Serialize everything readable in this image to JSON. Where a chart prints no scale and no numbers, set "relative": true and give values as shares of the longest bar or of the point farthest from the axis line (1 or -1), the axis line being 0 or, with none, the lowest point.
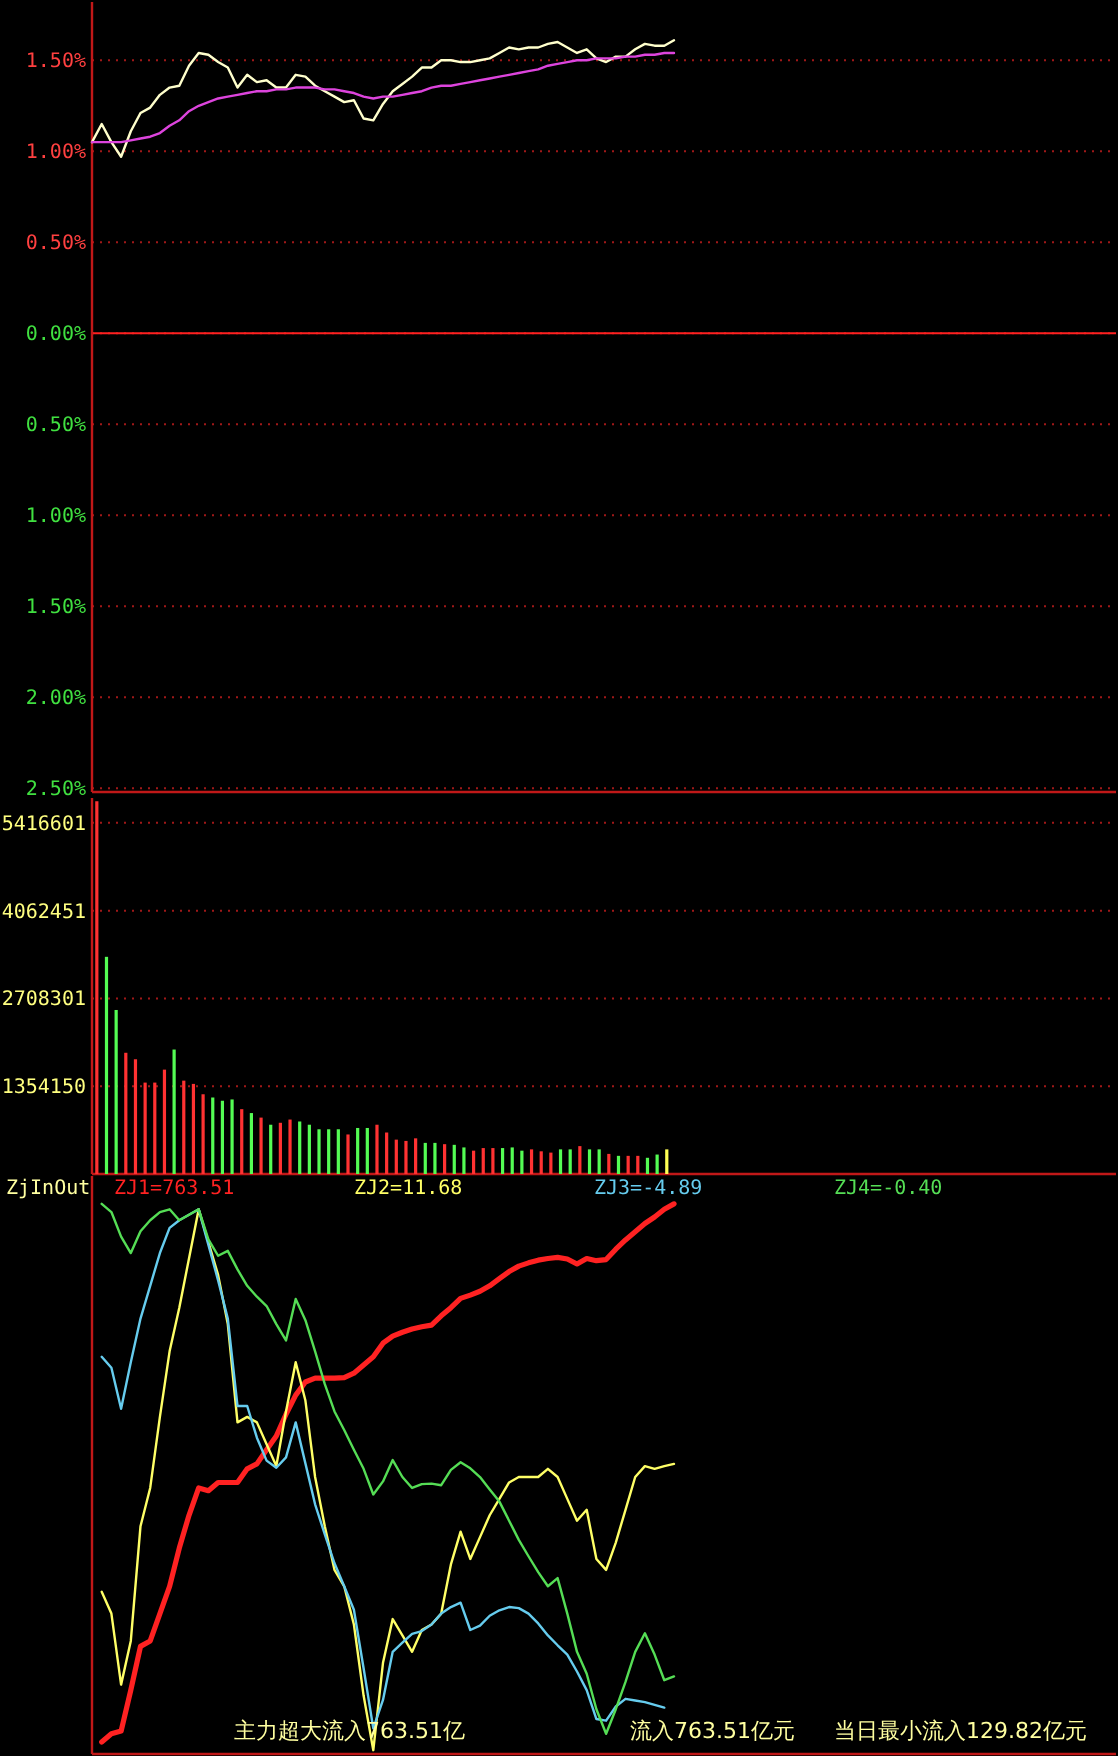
{
  "chart_data": [
    {
      "type": "line",
      "ylim": [
        -2.52,
        1.82
      ],
      "tick_labels": "y",
      "grid": "y",
      "categories": [
        null,
        null,
        null,
        null,
        null,
        null,
        null,
        null,
        null,
        null,
        null,
        null,
        null,
        null,
        null,
        null,
        null,
        null,
        null,
        null,
        null,
        null,
        null,
        null,
        null,
        null,
        null,
        null,
        null,
        null,
        null,
        null,
        null,
        null,
        null,
        null,
        null,
        null,
        null,
        null,
        null,
        null,
        null,
        null,
        null,
        null,
        null,
        null,
        null,
        null,
        null,
        null,
        null,
        null,
        null,
        null,
        null,
        null,
        null,
        null,
        null
      ],
      "yticks": [
        {
          "value": 1.5,
          "label": "1.50%"
        },
        {
          "value": 1.0,
          "label": "1.00%"
        },
        {
          "value": 0.5,
          "label": "0.50%"
        },
        {
          "value": 0,
          "label": "0.00%"
        },
        {
          "value": -0.5,
          "label": "0.50%"
        },
        {
          "value": -1.0,
          "label": "1.00%"
        },
        {
          "value": -1.5,
          "label": "1.50%"
        },
        {
          "value": -2.0,
          "label": "2.00%"
        },
        {
          "value": -2.5,
          "label": "2.50%"
        }
      ],
      "ref_lines": [
        {
          "axis": "y",
          "value": 0,
          "color": "#ff2020",
          "line_style": "solid"
        }
      ],
      "series": [
        {
          "color": "#ffffcc",
          "values": [
            1.05,
            1.15,
            1.05,
            0.97,
            1.11,
            1.21,
            1.24,
            1.31,
            1.35,
            1.36,
            1.47,
            1.54,
            1.53,
            1.49,
            1.46,
            1.35,
            1.42,
            1.38,
            1.39,
            1.35,
            1.35,
            1.42,
            1.41,
            1.36,
            1.33,
            1.3,
            1.27,
            1.28,
            1.18,
            1.17,
            1.26,
            1.33,
            1.37,
            1.41,
            1.46,
            1.46,
            1.5,
            1.5,
            1.49,
            1.49,
            1.5,
            1.51,
            1.54,
            1.57,
            1.56,
            1.57,
            1.57,
            1.59,
            1.6,
            1.57,
            1.54,
            1.56,
            1.51,
            1.49,
            1.52,
            1.52,
            1.56,
            1.59,
            1.58,
            1.58,
            1.61
          ]
        },
        {
          "color": "#dd44dd",
          "values": [
            1.05,
            1.05,
            1.05,
            1.05,
            1.06,
            1.07,
            1.08,
            1.1,
            1.14,
            1.17,
            1.22,
            1.25,
            1.27,
            1.29,
            1.3,
            1.31,
            1.32,
            1.33,
            1.33,
            1.34,
            1.34,
            1.35,
            1.35,
            1.35,
            1.34,
            1.34,
            1.33,
            1.32,
            1.3,
            1.29,
            1.3,
            1.3,
            1.31,
            1.32,
            1.33,
            1.35,
            1.36,
            1.36,
            1.37,
            1.38,
            1.39,
            1.4,
            1.41,
            1.42,
            1.43,
            1.44,
            1.45,
            1.47,
            1.48,
            1.49,
            1.5,
            1.5,
            1.51,
            1.51,
            1.51,
            1.52,
            1.52,
            1.53,
            1.53,
            1.54,
            1.54
          ]
        }
      ]
    },
    {
      "type": "bar",
      "ylim": [
        0,
        5800000
      ],
      "tick_labels": "y",
      "grid": "y",
      "yticks": [
        1354150,
        2708301,
        4062451,
        5416601
      ],
      "categories": [
        null,
        null,
        null,
        null,
        null,
        null,
        null,
        null,
        null,
        null,
        null,
        null,
        null,
        null,
        null,
        null,
        null,
        null,
        null,
        null,
        null,
        null,
        null,
        null,
        null,
        null,
        null,
        null,
        null,
        null,
        null,
        null,
        null,
        null,
        null,
        null,
        null,
        null,
        null,
        null,
        null,
        null,
        null,
        null,
        null,
        null,
        null,
        null,
        null,
        null,
        null,
        null,
        null,
        null,
        null,
        null,
        null,
        null,
        null,
        null,
        null,
        null,
        null,
        null,
        null,
        null,
        null,
        null,
        null,
        null,
        null,
        null,
        null,
        null,
        null,
        null,
        null,
        null,
        null,
        null,
        null,
        null,
        null,
        null,
        null,
        null,
        null,
        null,
        null,
        null,
        null,
        null,
        null,
        null,
        null,
        null,
        null,
        null,
        null,
        null,
        null,
        null,
        null,
        null,
        null,
        null
      ],
      "values": [
        5750000,
        3350000,
        2530000,
        1870000,
        1770000,
        1410000,
        1410000,
        1610000,
        1920000,
        1440000,
        1390000,
        1230000,
        1180000,
        1130000,
        1150000,
        1000000,
        940000,
        870000,
        760000,
        790000,
        840000,
        810000,
        760000,
        690000,
        690000,
        690000,
        610000,
        710000,
        710000,
        760000,
        640000,
        530000,
        510000,
        550000,
        480000,
        480000,
        460000,
        450000,
        410000,
        360000,
        400000,
        400000,
        400000,
        410000,
        360000,
        380000,
        350000,
        330000,
        380000,
        380000,
        430000,
        380000,
        380000,
        310000,
        280000,
        280000,
        280000,
        250000,
        300000,
        380000,
        null,
        null,
        null,
        null,
        null,
        null,
        null,
        null,
        null,
        null,
        null,
        null,
        null,
        null,
        null,
        null,
        null,
        null,
        null,
        null,
        null,
        null,
        null,
        null,
        null,
        null,
        null,
        null,
        null,
        null,
        null,
        null,
        null,
        null,
        null,
        null,
        null,
        null,
        null,
        null,
        null,
        null,
        null,
        null,
        null,
        null
      ],
      "colors": [
        "#ff3232",
        "#54fc54",
        "#54fc54",
        "#ff3232",
        "#ff3232",
        "#ff3232",
        "#ff3232",
        "#ff3232",
        "#54fc54",
        "#ff3232",
        "#ff3232",
        "#ff3232",
        "#54fc54",
        "#54fc54",
        "#54fc54",
        "#ff3232",
        "#54fc54",
        "#ff3232",
        "#54fc54",
        "#ff3232",
        "#ff3232",
        "#54fc54",
        "#54fc54",
        "#54fc54",
        "#54fc54",
        "#54fc54",
        "#ff3232",
        "#54fc54",
        "#54fc54",
        "#ff3232",
        "#ff3232",
        "#ff3232",
        "#ff3232",
        "#ff3232",
        "#54fc54",
        "#54fc54",
        "#ff3232",
        "#54fc54",
        "#54fc54",
        "#ff3232",
        "#ff3232",
        "#ff3232",
        "#54fc54",
        "#54fc54",
        "#54fc54",
        "#ff3232",
        "#ff3232",
        "#ff3232",
        "#54fc54",
        "#54fc54",
        "#ff3232",
        "#54fc54",
        "#54fc54",
        "#ff3232",
        "#54fc54",
        "#ff3232",
        "#ff3232",
        "#54fc54",
        "#54fc54",
        "#ffff54",
        null,
        null,
        null,
        null,
        null,
        null,
        null,
        null,
        null,
        null,
        null,
        null,
        null,
        null,
        null,
        null,
        null,
        null,
        null,
        null,
        null,
        null,
        null,
        null,
        null,
        null,
        null,
        null,
        null,
        null,
        null,
        null,
        null,
        null,
        null,
        null,
        null,
        null,
        null,
        null,
        null,
        null,
        null,
        null,
        null,
        null
      ]
    },
    {
      "type": "line",
      "title": "ZjInOut",
      "relative": true,
      "tick_labels": false,
      "categories": [
        null,
        null,
        null,
        null,
        null,
        null,
        null,
        null,
        null,
        null,
        null,
        null,
        null,
        null,
        null,
        null,
        null,
        null,
        null,
        null,
        null,
        null,
        null,
        null,
        null,
        null,
        null,
        null,
        null,
        null,
        null,
        null,
        null,
        null,
        null,
        null,
        null,
        null,
        null,
        null,
        null,
        null,
        null,
        null,
        null,
        null,
        null,
        null,
        null,
        null,
        null,
        null,
        null,
        null,
        null,
        null,
        null,
        null,
        null,
        null,
        null
      ],
      "annotations": [
        "主力超大流入763.51亿",
        "流入763.51亿元",
        "当日最小流入129.82亿元"
      ],
      "series": [
        {
          "name": "ZJ1=763.51",
          "color": "#ff2222",
          "values": [
            null,
            0.015,
            0.03,
            0.035,
            0.11,
            0.19,
            0.2,
            0.25,
            0.3,
            0.37,
            0.43,
            0.48,
            0.475,
            0.49,
            0.49,
            0.49,
            0.515,
            0.524,
            0.55,
            0.575,
            0.615,
            0.65,
            0.674,
            0.681,
            0.681,
            0.681,
            0.682,
            0.69,
            0.705,
            0.72,
            0.745,
            0.758,
            0.765,
            0.771,
            0.775,
            0.778,
            0.795,
            0.81,
            0.827,
            0.833,
            0.84,
            0.85,
            0.863,
            0.876,
            0.886,
            0.892,
            0.897,
            0.9,
            0.902,
            0.899,
            0.89,
            0.9,
            0.896,
            0.898,
            0.917,
            0.934,
            0.949,
            0.964,
            0.976,
            0.99,
            1.0
          ]
        },
        {
          "name": "ZJ2=11.68",
          "color": "#ffff66",
          "values": [
            null,
            0.29,
            0.25,
            0.12,
            0.2,
            0.41,
            0.48,
            0.61,
            0.73,
            0.81,
            0.9,
            0.99,
            0.93,
            0.87,
            0.78,
            0.6,
            0.61,
            0.6,
            0.56,
            0.52,
            0.62,
            0.71,
            0.64,
            0.5,
            0.41,
            0.33,
            0.3,
            0.23,
            0.1,
            0,
            0.16,
            0.24,
            0.21,
            0.18,
            0.22,
            0.23,
            0.25,
            0.34,
            0.4,
            0.35,
            0.39,
            0.43,
            0.46,
            0.49,
            0.5,
            0.5,
            0.5,
            0.515,
            0.5,
            0.46,
            0.42,
            0.44,
            0.35,
            0.33,
            0.38,
            0.44,
            0.5,
            0.52,
            0.515,
            0.52,
            0.524
          ]
        },
        {
          "name": "ZJ3=-4.89",
          "color": "#66ccee",
          "values": [
            null,
            0.72,
            0.7,
            0.625,
            0.71,
            0.79,
            0.85,
            0.91,
            0.956,
            0.97,
            0.98,
            0.99,
            0.925,
            0.86,
            0.79,
            0.63,
            0.63,
            0.572,
            0.53,
            0.517,
            0.536,
            0.6,
            0.525,
            0.45,
            0.395,
            0.342,
            0.3,
            0.257,
            0.15,
            0.04,
            0.092,
            0.18,
            0.197,
            0.213,
            0.218,
            0.23,
            0.25,
            0.262,
            0.27,
            0.22,
            0.228,
            0.246,
            0.256,
            0.262,
            0.26,
            0.25,
            0.232,
            0.21,
            0.192,
            0.175,
            0.144,
            0.11,
            0.057,
            0.054,
            0.08,
            0.094,
            0.091,
            0.088,
            0.083,
            0.078,
            null
          ]
        },
        {
          "name": "ZJ4=-0.40",
          "color": "#55dd55",
          "values": [
            null,
            1.0,
            0.985,
            0.94,
            0.91,
            0.95,
            0.97,
            0.985,
            0.99,
            0.97,
            0.98,
            0.99,
            0.935,
            0.905,
            0.914,
            0.88,
            0.85,
            0.83,
            0.813,
            0.78,
            0.75,
            0.826,
            0.787,
            0.73,
            0.67,
            0.62,
            0.586,
            0.55,
            0.515,
            0.468,
            0.492,
            0.531,
            0.5,
            0.48,
            0.487,
            0.488,
            0.485,
            0.513,
            0.527,
            0.516,
            0.5,
            0.477,
            0.455,
            0.42,
            0.385,
            0.355,
            0.326,
            0.3,
            0.315,
            0.25,
            0.18,
            0.14,
            0.075,
            0.03,
            0.075,
            0.125,
            0.18,
            0.214,
            0.175,
            0.128,
            0.135
          ]
        }
      ]
    }
  ]
}
